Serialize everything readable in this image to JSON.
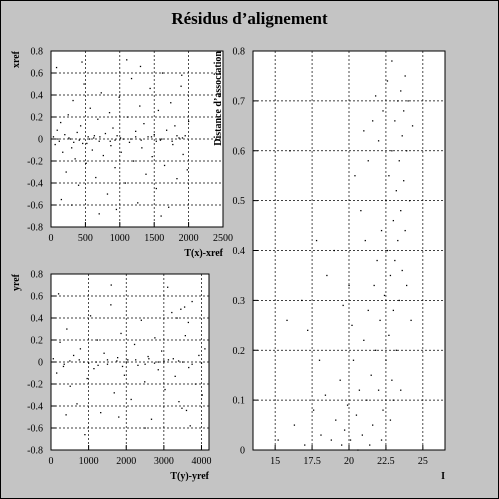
{
  "title": "Résidus d’alignement",
  "colors": {
    "background": "#c4c4c4",
    "frame": "#ffffff",
    "points": "#000000",
    "grid": "#000000"
  },
  "chart_data": [
    {
      "id": "xres",
      "type": "scatter",
      "xlabel": "T(x)-xref",
      "ylabel": "xref",
      "xlim": [
        0,
        2500
      ],
      "ylim": [
        -0.8,
        0.8
      ],
      "xticks": [
        0,
        500,
        1000,
        1500,
        2000,
        2500
      ],
      "xtick_labels": [
        "0",
        "500",
        "1000",
        "1500",
        "2000",
        "2500"
      ],
      "yticks": [
        -0.8,
        -0.6,
        -0.4,
        -0.2,
        0,
        0.2,
        0.4,
        0.6,
        0.8
      ],
      "ytick_labels": [
        "-0.8",
        "-0.6",
        "-0.4",
        "-0.2",
        "0",
        "0.2",
        "0.4",
        "0.6",
        "0.8"
      ],
      "grid": true,
      "points": [
        [
          35,
          0.02
        ],
        [
          60,
          -0.05
        ],
        [
          90,
          0.08
        ],
        [
          120,
          -0.02
        ],
        [
          140,
          0.15
        ],
        [
          170,
          -0.12
        ],
        [
          200,
          0.04
        ],
        [
          220,
          -0.3
        ],
        [
          250,
          0.22
        ],
        [
          280,
          0.0
        ],
        [
          300,
          -0.08
        ],
        [
          320,
          0.35
        ],
        [
          350,
          -0.18
        ],
        [
          380,
          0.06
        ],
        [
          400,
          -0.42
        ],
        [
          430,
          0.12
        ],
        [
          460,
          -0.04
        ],
        [
          480,
          0.5
        ],
        [
          510,
          -0.22
        ],
        [
          540,
          0.02
        ],
        [
          570,
          0.28
        ],
        [
          600,
          -0.1
        ],
        [
          620,
          0.01
        ],
        [
          650,
          -0.35
        ],
        [
          680,
          0.18
        ],
        [
          700,
          -0.02
        ],
        [
          730,
          0.42
        ],
        [
          760,
          -0.15
        ],
        [
          790,
          0.05
        ],
        [
          820,
          -0.5
        ],
        [
          850,
          0.24
        ],
        [
          870,
          -0.06
        ],
        [
          900,
          0.1
        ],
        [
          930,
          -0.26
        ],
        [
          960,
          0.03
        ],
        [
          990,
          0.38
        ],
        [
          1020,
          -0.12
        ],
        [
          1050,
          0.0
        ],
        [
          1080,
          -0.4
        ],
        [
          1110,
          0.2
        ],
        [
          1140,
          -0.03
        ],
        [
          1170,
          0.55
        ],
        [
          1200,
          -0.2
        ],
        [
          1230,
          0.07
        ],
        [
          1260,
          -0.58
        ],
        [
          1290,
          0.3
        ],
        [
          1320,
          -0.08
        ],
        [
          1350,
          0.14
        ],
        [
          1380,
          -0.32
        ],
        [
          1410,
          0.02
        ],
        [
          1440,
          0.46
        ],
        [
          1470,
          -0.16
        ],
        [
          1500,
          0.04
        ],
        [
          1530,
          -0.45
        ],
        [
          1560,
          0.26
        ],
        [
          1590,
          -0.01
        ],
        [
          1620,
          0.6
        ],
        [
          1650,
          -0.24
        ],
        [
          1680,
          0.08
        ],
        [
          1710,
          -0.62
        ],
        [
          1740,
          0.33
        ],
        [
          1770,
          -0.05
        ],
        [
          1800,
          0.12
        ],
        [
          1830,
          -0.36
        ],
        [
          1860,
          0.01
        ],
        [
          1890,
          0.48
        ],
        [
          1920,
          -0.14
        ],
        [
          1950,
          0.03
        ],
        [
          1980,
          -0.28
        ],
        [
          2000,
          0.16
        ],
        [
          80,
          0.65
        ],
        [
          450,
          0.7
        ],
        [
          1100,
          0.72
        ],
        [
          1600,
          -0.7
        ],
        [
          700,
          -0.68
        ],
        [
          300,
          -0.6
        ],
        [
          1900,
          0.58
        ],
        [
          1300,
          0.66
        ],
        [
          950,
          -0.64
        ],
        [
          150,
          -0.55
        ],
        [
          100,
          0.0
        ],
        [
          260,
          0.01
        ],
        [
          410,
          -0.01
        ],
        [
          560,
          0.0
        ],
        [
          710,
          0.02
        ],
        [
          860,
          -0.02
        ],
        [
          1010,
          0.01
        ],
        [
          1160,
          0.0
        ],
        [
          1310,
          -0.01
        ],
        [
          1460,
          0.02
        ],
        [
          1610,
          0.0
        ],
        [
          1760,
          -0.02
        ],
        [
          1910,
          0.01
        ],
        [
          330,
          -0.03
        ],
        [
          630,
          0.03
        ],
        [
          930,
          -0.01
        ],
        [
          1230,
          0.02
        ],
        [
          1530,
          -0.02
        ],
        [
          1830,
          0.03
        ],
        [
          520,
          -0.04
        ]
      ]
    },
    {
      "id": "yres",
      "type": "scatter",
      "xlabel": "T(y)-yref",
      "ylabel": "yref",
      "xlim": [
        0,
        4200
      ],
      "ylim": [
        -0.8,
        0.8
      ],
      "xticks": [
        0,
        1000,
        2000,
        3000,
        4000
      ],
      "xtick_labels": [
        "0",
        "1000",
        "2000",
        "3000",
        "4000"
      ],
      "yticks": [
        -0.8,
        -0.6,
        -0.4,
        -0.2,
        0,
        0.2,
        0.4,
        0.6,
        0.8
      ],
      "ytick_labels": [
        "-0.8",
        "-0.6",
        "-0.4",
        "-0.2",
        "0",
        "0.2",
        "0.4",
        "0.6",
        "0.8"
      ],
      "grid": true,
      "points": [
        [
          60,
          0.03
        ],
        [
          150,
          -0.1
        ],
        [
          240,
          0.18
        ],
        [
          330,
          -0.04
        ],
        [
          420,
          0.3
        ],
        [
          510,
          -0.22
        ],
        [
          600,
          0.06
        ],
        [
          690,
          -0.38
        ],
        [
          780,
          0.12
        ],
        [
          870,
          0.0
        ],
        [
          960,
          -0.15
        ],
        [
          1050,
          0.42
        ],
        [
          1140,
          -0.06
        ],
        [
          1230,
          0.2
        ],
        [
          1320,
          -0.46
        ],
        [
          1410,
          0.08
        ],
        [
          1500,
          -0.02
        ],
        [
          1590,
          0.52
        ],
        [
          1680,
          -0.28
        ],
        [
          1770,
          0.04
        ],
        [
          1860,
          0.26
        ],
        [
          1950,
          -0.12
        ],
        [
          2040,
          0.02
        ],
        [
          2130,
          -0.34
        ],
        [
          2220,
          0.16
        ],
        [
          2310,
          -0.03
        ],
        [
          2400,
          0.38
        ],
        [
          2490,
          -0.18
        ],
        [
          2580,
          0.05
        ],
        [
          2670,
          -0.52
        ],
        [
          2760,
          0.22
        ],
        [
          2850,
          -0.07
        ],
        [
          2940,
          0.1
        ],
        [
          3030,
          -0.25
        ],
        [
          3120,
          0.02
        ],
        [
          3210,
          0.45
        ],
        [
          3300,
          -0.13
        ],
        [
          3390,
          0.01
        ],
        [
          3480,
          -0.42
        ],
        [
          3570,
          0.24
        ],
        [
          3660,
          -0.05
        ],
        [
          3750,
          0.55
        ],
        [
          3840,
          -0.2
        ],
        [
          3930,
          0.06
        ],
        [
          4020,
          -0.3
        ],
        [
          4090,
          0.12
        ],
        [
          200,
          0.62
        ],
        [
          900,
          -0.66
        ],
        [
          1600,
          0.7
        ],
        [
          2500,
          -0.6
        ],
        [
          3100,
          0.68
        ],
        [
          3700,
          -0.58
        ],
        [
          500,
          0.01
        ],
        [
          1000,
          -0.01
        ],
        [
          1500,
          0.02
        ],
        [
          2000,
          0.0
        ],
        [
          2500,
          -0.02
        ],
        [
          3000,
          0.01
        ],
        [
          3500,
          0.0
        ],
        [
          4000,
          -0.01
        ],
        [
          750,
          0.02
        ],
        [
          1250,
          -0.03
        ],
        [
          1750,
          0.01
        ],
        [
          2250,
          0.02
        ],
        [
          2750,
          -0.01
        ],
        [
          3250,
          0.03
        ],
        [
          3750,
          -0.02
        ],
        [
          350,
          -0.02
        ],
        [
          2850,
          0.0
        ],
        [
          1900,
          -0.04
        ],
        [
          3350,
          0.4
        ],
        [
          3450,
          0.48
        ],
        [
          3550,
          0.5
        ],
        [
          3650,
          0.36
        ],
        [
          3400,
          -0.36
        ],
        [
          3600,
          -0.44
        ],
        [
          1200,
          0.0
        ],
        [
          2600,
          0.03
        ],
        [
          400,
          -0.48
        ],
        [
          1800,
          -0.5
        ]
      ]
    },
    {
      "id": "dist",
      "type": "scatter",
      "xlabel": "I",
      "ylabel": "Distance d’association",
      "xlim": [
        13.5,
        26.5
      ],
      "ylim": [
        0,
        0.8
      ],
      "xticks": [
        15,
        17.5,
        20,
        22.5,
        25
      ],
      "xtick_labels": [
        "15",
        "17.5",
        "20",
        "22.5",
        "25"
      ],
      "yticks": [
        0,
        0.1,
        0.2,
        0.3,
        0.4,
        0.5,
        0.6,
        0.7,
        0.8
      ],
      "ytick_labels": [
        "0",
        "0.1",
        "0.2",
        "0.3",
        "0.4",
        "0.5",
        "0.6",
        "0.7",
        "0.8"
      ],
      "grid": true,
      "points": [
        [
          15.2,
          0.02
        ],
        [
          16.3,
          0.05
        ],
        [
          17.0,
          0.01
        ],
        [
          17.6,
          0.08
        ],
        [
          18.1,
          0.03
        ],
        [
          18.4,
          0.11
        ],
        [
          18.8,
          0.02
        ],
        [
          19.1,
          0.06
        ],
        [
          19.4,
          0.14
        ],
        [
          19.7,
          0.04
        ],
        [
          19.9,
          0.09
        ],
        [
          20.1,
          0.02
        ],
        [
          20.3,
          0.18
        ],
        [
          20.5,
          0.07
        ],
        [
          20.7,
          0.12
        ],
        [
          20.9,
          0.03
        ],
        [
          21.0,
          0.22
        ],
        [
          21.2,
          0.1
        ],
        [
          21.3,
          0.28
        ],
        [
          21.5,
          0.15
        ],
        [
          21.6,
          0.05
        ],
        [
          21.7,
          0.33
        ],
        [
          21.8,
          0.2
        ],
        [
          21.9,
          0.38
        ],
        [
          22.0,
          0.12
        ],
        [
          22.1,
          0.26
        ],
        [
          22.2,
          0.44
        ],
        [
          22.3,
          0.08
        ],
        [
          22.4,
          0.31
        ],
        [
          22.5,
          0.5
        ],
        [
          22.5,
          0.18
        ],
        [
          22.6,
          0.4
        ],
        [
          22.7,
          0.55
        ],
        [
          22.7,
          0.23
        ],
        [
          22.8,
          0.35
        ],
        [
          22.9,
          0.6
        ],
        [
          22.9,
          0.14
        ],
        [
          23.0,
          0.46
        ],
        [
          23.0,
          0.28
        ],
        [
          23.1,
          0.66
        ],
        [
          23.1,
          0.38
        ],
        [
          23.2,
          0.52
        ],
        [
          23.2,
          0.2
        ],
        [
          23.3,
          0.7
        ],
        [
          23.3,
          0.42
        ],
        [
          23.4,
          0.58
        ],
        [
          23.4,
          0.3
        ],
        [
          23.5,
          0.72
        ],
        [
          23.5,
          0.48
        ],
        [
          23.6,
          0.63
        ],
        [
          23.6,
          0.36
        ],
        [
          23.7,
          0.68
        ],
        [
          23.7,
          0.54
        ],
        [
          23.8,
          0.44
        ],
        [
          23.8,
          0.75
        ],
        [
          23.9,
          0.6
        ],
        [
          24.0,
          0.7
        ],
        [
          24.1,
          0.5
        ],
        [
          23.0,
          0.1
        ],
        [
          22.8,
          0.06
        ],
        [
          22.2,
          0.02
        ],
        [
          21.4,
          0.01
        ],
        [
          20.6,
          0.0
        ],
        [
          19.5,
          0.01
        ],
        [
          21.1,
          0.42
        ],
        [
          21.3,
          0.58
        ],
        [
          20.8,
          0.48
        ],
        [
          22.0,
          0.62
        ],
        [
          21.8,
          0.71
        ],
        [
          22.6,
          0.74
        ],
        [
          16.8,
          0.3
        ],
        [
          17.2,
          0.24
        ],
        [
          18.5,
          0.35
        ],
        [
          19.0,
          0.4
        ],
        [
          20.0,
          0.33
        ],
        [
          15.8,
          0.26
        ],
        [
          18.0,
          0.18
        ],
        [
          19.6,
          0.29
        ],
        [
          17.8,
          0.42
        ],
        [
          16.0,
          0.6
        ],
        [
          21.0,
          0.64
        ],
        [
          20.4,
          0.55
        ],
        [
          22.3,
          0.68
        ],
        [
          23.9,
          0.33
        ],
        [
          24.2,
          0.26
        ],
        [
          23.5,
          0.12
        ],
        [
          24.3,
          0.65
        ],
        [
          22.9,
          0.78
        ],
        [
          21.6,
          0.66
        ],
        [
          20.2,
          0.25
        ]
      ]
    }
  ]
}
